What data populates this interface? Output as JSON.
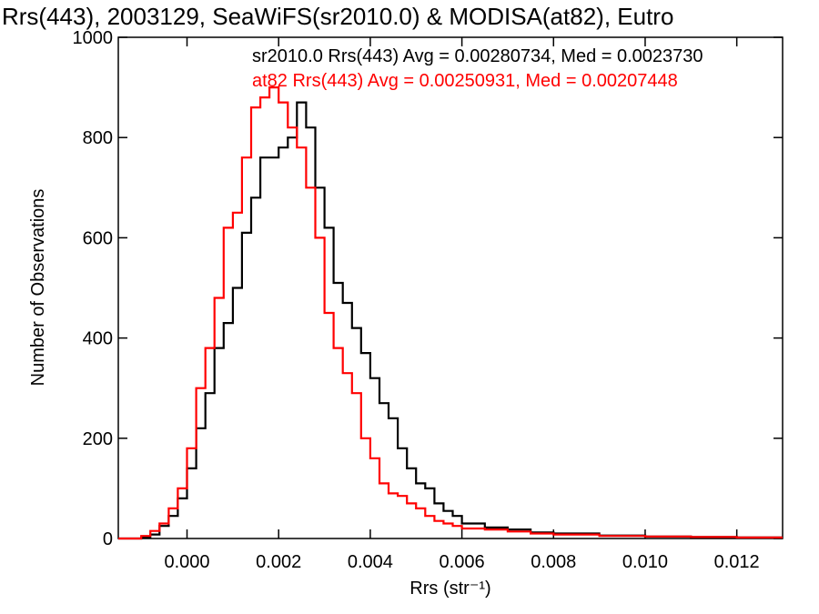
{
  "chart_data": {
    "type": "line",
    "title": "Rrs(443), 2003129, SeaWiFS(sr2010.0) & MODISA(at82), Eutro",
    "xlabel": "Rrs (str⁻¹)",
    "ylabel": "Number of Observations",
    "xlim": [
      -0.0015,
      0.013
    ],
    "ylim": [
      0,
      1000
    ],
    "x_ticks": [
      "0.000",
      "0.002",
      "0.004",
      "0.006",
      "0.008",
      "0.010",
      "0.012"
    ],
    "y_ticks": [
      "0",
      "200",
      "400",
      "600",
      "800",
      "1000"
    ],
    "grid": false,
    "legend_position": "top",
    "series": [
      {
        "name": "sr2010.0 Rrs(443) Avg = 0.00280734, Med = 0.0023730",
        "color": "#000000",
        "x": [
          -0.0015,
          -0.0012,
          -0.001,
          -0.0008,
          -0.0006,
          -0.0004,
          -0.0002,
          0.0,
          0.0002,
          0.0004,
          0.0006,
          0.0008,
          0.001,
          0.0012,
          0.0014,
          0.0016,
          0.0018,
          0.002,
          0.0022,
          0.0024,
          0.0026,
          0.0028,
          0.003,
          0.0032,
          0.0034,
          0.0036,
          0.0038,
          0.004,
          0.0042,
          0.0044,
          0.0046,
          0.0048,
          0.005,
          0.0052,
          0.0054,
          0.0056,
          0.0058,
          0.006,
          0.0065,
          0.007,
          0.0075,
          0.008,
          0.009,
          0.01,
          0.011,
          0.012,
          0.013
        ],
        "y": [
          0,
          0,
          2,
          8,
          25,
          45,
          80,
          140,
          220,
          290,
          380,
          430,
          500,
          610,
          680,
          760,
          760,
          780,
          800,
          870,
          820,
          700,
          620,
          510,
          470,
          420,
          370,
          320,
          270,
          240,
          180,
          140,
          110,
          100,
          70,
          55,
          45,
          30,
          22,
          18,
          12,
          10,
          6,
          4,
          3,
          2,
          2
        ]
      },
      {
        "name": "at82 Rrs(443) Avg = 0.00250931, Med = 0.00207448",
        "color": "#ff0000",
        "x": [
          -0.0015,
          -0.0012,
          -0.001,
          -0.0008,
          -0.0006,
          -0.0004,
          -0.0002,
          0.0,
          0.0002,
          0.0004,
          0.0006,
          0.0008,
          0.001,
          0.0012,
          0.0014,
          0.0016,
          0.0018,
          0.002,
          0.0022,
          0.0024,
          0.0026,
          0.0028,
          0.003,
          0.0032,
          0.0034,
          0.0036,
          0.0038,
          0.004,
          0.0042,
          0.0044,
          0.0046,
          0.0048,
          0.005,
          0.0052,
          0.0054,
          0.0056,
          0.0058,
          0.006,
          0.0065,
          0.007,
          0.0075,
          0.008,
          0.009,
          0.01,
          0.011,
          0.012,
          0.013
        ],
        "y": [
          0,
          0,
          5,
          15,
          30,
          60,
          100,
          180,
          300,
          380,
          480,
          620,
          650,
          760,
          860,
          880,
          900,
          870,
          820,
          780,
          700,
          600,
          450,
          380,
          330,
          290,
          200,
          160,
          110,
          90,
          85,
          70,
          60,
          45,
          35,
          30,
          25,
          20,
          18,
          14,
          10,
          8,
          5,
          4,
          3,
          2,
          2
        ]
      }
    ]
  }
}
